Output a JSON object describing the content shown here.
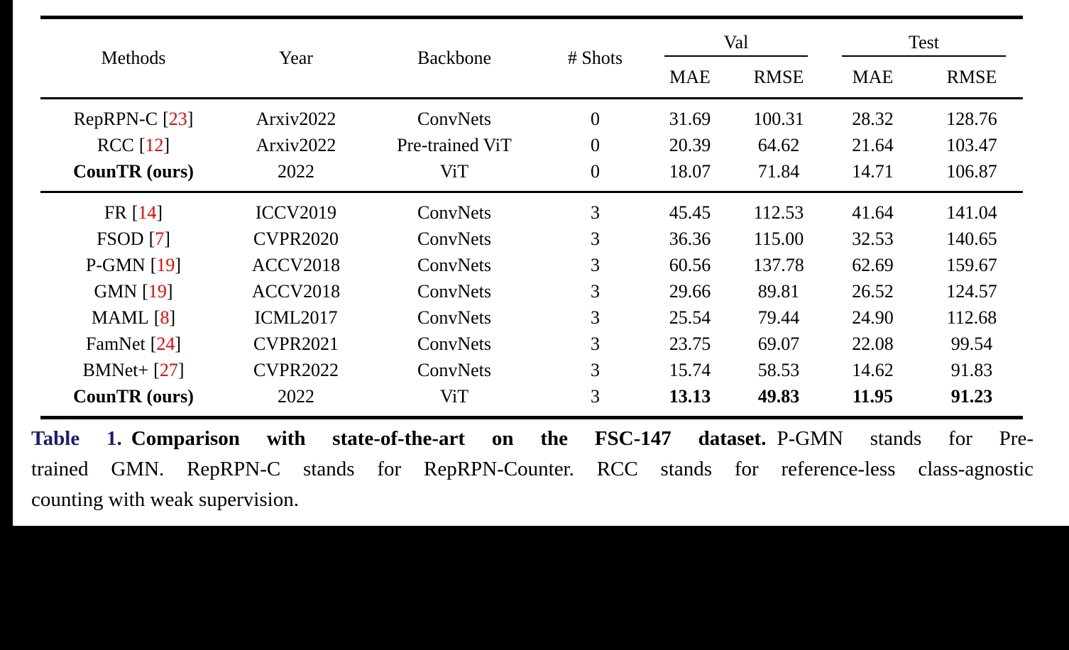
{
  "page": {
    "background": "#000000",
    "panel_background": "#ffffff"
  },
  "colors": {
    "citation_red": "#f20000",
    "caption_label_blue": "#1b1b78",
    "text_black": "#000000"
  },
  "table": {
    "cite_open": "[",
    "cite_close": "]",
    "headers": {
      "methods": "Methods",
      "year": "Year",
      "backbone": "Backbone",
      "shots": "# Shots",
      "val_group": "Val",
      "test_group": "Test",
      "val_mae": "MAE",
      "val_rmse": "RMSE",
      "test_mae": "MAE",
      "test_rmse": "RMSE"
    },
    "groups": [
      {
        "rows": [
          {
            "method": "RepRPN-C",
            "cite": "23",
            "year": "Arxiv2022",
            "backbone": "ConvNets",
            "shots": "0",
            "val_mae": "31.69",
            "val_rmse": "100.31",
            "test_mae": "28.32",
            "test_rmse": "128.76",
            "bold_method": false,
            "bold_values": false
          },
          {
            "method": "RCC",
            "cite": "12",
            "year": "Arxiv2022",
            "backbone": "Pre-trained ViT",
            "shots": "0",
            "val_mae": "20.39",
            "val_rmse": "64.62",
            "test_mae": "21.64",
            "test_rmse": "103.47",
            "bold_method": false,
            "bold_values": false
          },
          {
            "method": "CounTR (ours)",
            "cite": null,
            "year": "2022",
            "backbone": "ViT",
            "shots": "0",
            "val_mae": "18.07",
            "val_rmse": "71.84",
            "test_mae": "14.71",
            "test_rmse": "106.87",
            "bold_method": true,
            "bold_values": false
          }
        ]
      },
      {
        "rows": [
          {
            "method": "FR",
            "cite": "14",
            "year": "ICCV2019",
            "backbone": "ConvNets",
            "shots": "3",
            "val_mae": "45.45",
            "val_rmse": "112.53",
            "test_mae": "41.64",
            "test_rmse": "141.04",
            "bold_method": false,
            "bold_values": false
          },
          {
            "method": "FSOD",
            "cite": "7",
            "year": "CVPR2020",
            "backbone": "ConvNets",
            "shots": "3",
            "val_mae": "36.36",
            "val_rmse": "115.00",
            "test_mae": "32.53",
            "test_rmse": "140.65",
            "bold_method": false,
            "bold_values": false
          },
          {
            "method": "P-GMN",
            "cite": "19",
            "year": "ACCV2018",
            "backbone": "ConvNets",
            "shots": "3",
            "val_mae": "60.56",
            "val_rmse": "137.78",
            "test_mae": "62.69",
            "test_rmse": "159.67",
            "bold_method": false,
            "bold_values": false
          },
          {
            "method": "GMN",
            "cite": "19",
            "year": "ACCV2018",
            "backbone": "ConvNets",
            "shots": "3",
            "val_mae": "29.66",
            "val_rmse": "89.81",
            "test_mae": "26.52",
            "test_rmse": "124.57",
            "bold_method": false,
            "bold_values": false
          },
          {
            "method": "MAML",
            "cite": "8",
            "year": "ICML2017",
            "backbone": "ConvNets",
            "shots": "3",
            "val_mae": "25.54",
            "val_rmse": "79.44",
            "test_mae": "24.90",
            "test_rmse": "112.68",
            "bold_method": false,
            "bold_values": false
          },
          {
            "method": "FamNet",
            "cite": "24",
            "year": "CVPR2021",
            "backbone": "ConvNets",
            "shots": "3",
            "val_mae": "23.75",
            "val_rmse": "69.07",
            "test_mae": "22.08",
            "test_rmse": "99.54",
            "bold_method": false,
            "bold_values": false
          },
          {
            "method": "BMNet+",
            "cite": "27",
            "year": "CVPR2022",
            "backbone": "ConvNets",
            "shots": "3",
            "val_mae": "15.74",
            "val_rmse": "58.53",
            "test_mae": "14.62",
            "test_rmse": "91.83",
            "bold_method": false,
            "bold_values": false
          },
          {
            "method": "CounTR (ours)",
            "cite": null,
            "year": "2022",
            "backbone": "ViT",
            "shots": "3",
            "val_mae": "13.13",
            "val_rmse": "49.83",
            "test_mae": "11.95",
            "test_rmse": "91.23",
            "bold_method": true,
            "bold_values": true
          }
        ]
      }
    ]
  },
  "caption": {
    "label": "Table 1.",
    "bold_sentence": "Comparison with state-of-the-art on the FSC-147 dataset.",
    "line1_rest": "P-GMN stands for Pre-",
    "line2": "trained GMN. RepRPN-C stands for RepRPN-Counter. RCC stands for reference-less class-agnostic",
    "line3": "counting with weak supervision."
  }
}
